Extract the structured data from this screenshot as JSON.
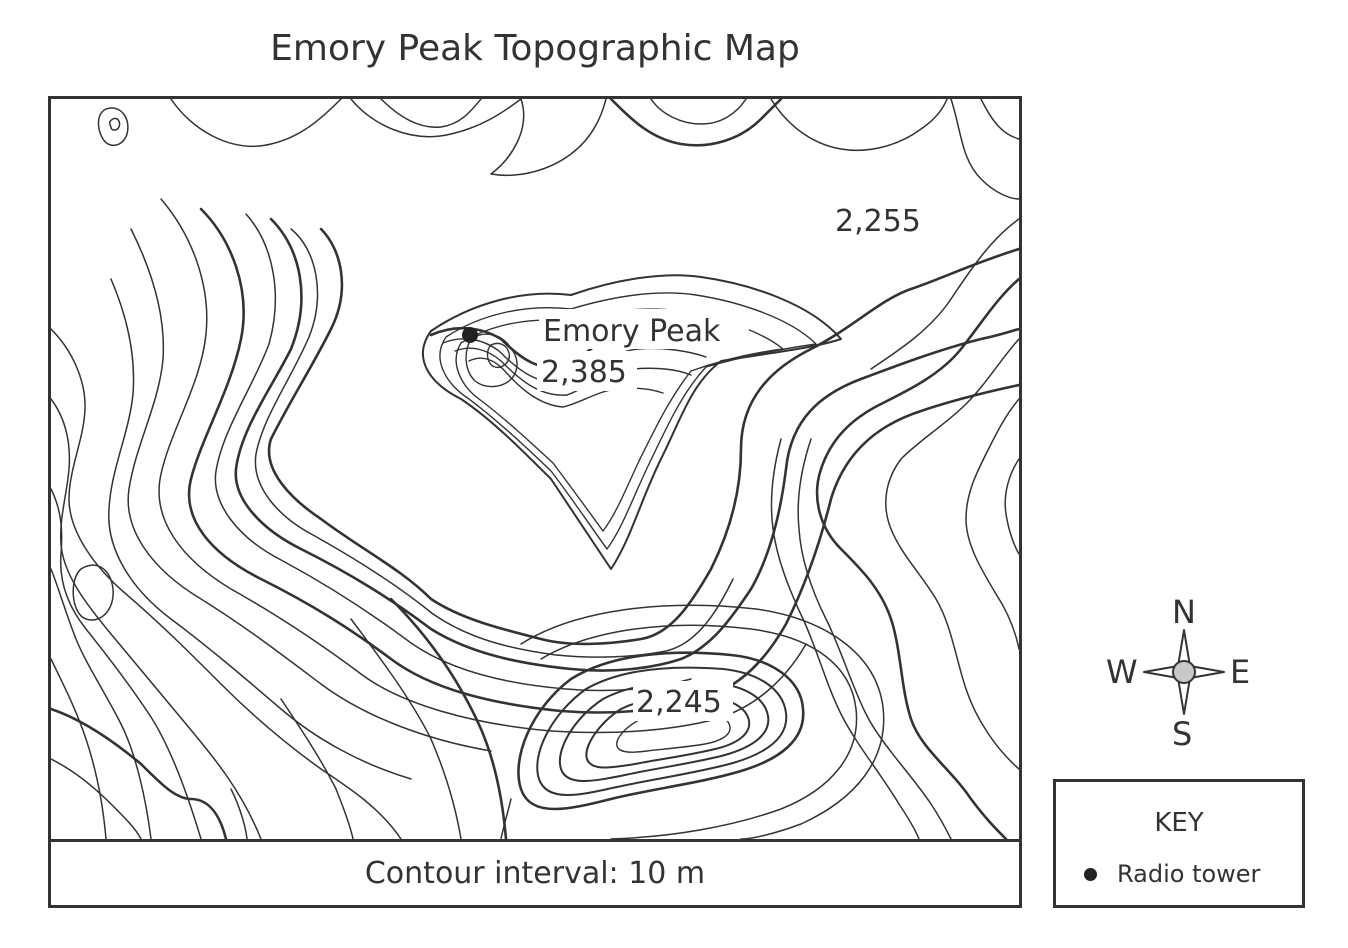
{
  "map": {
    "title": "Emory Peak Topographic Map",
    "contour_interval_label": "Contour interval: 10 m",
    "labels": {
      "peak_name": "Emory Peak",
      "peak_elevation": "2,385",
      "ne_elevation": "2,255",
      "south_hill_elevation": "2,245"
    },
    "colors": {
      "line": "#333333",
      "text": "#333333",
      "background": "#ffffff",
      "compass_center": "#c8c8c8"
    }
  },
  "compass": {
    "north": "N",
    "south": "S",
    "east": "E",
    "west": "W"
  },
  "key": {
    "title": "KEY",
    "items": [
      {
        "icon": "filled-dot-icon",
        "label": "Radio tower"
      }
    ]
  }
}
